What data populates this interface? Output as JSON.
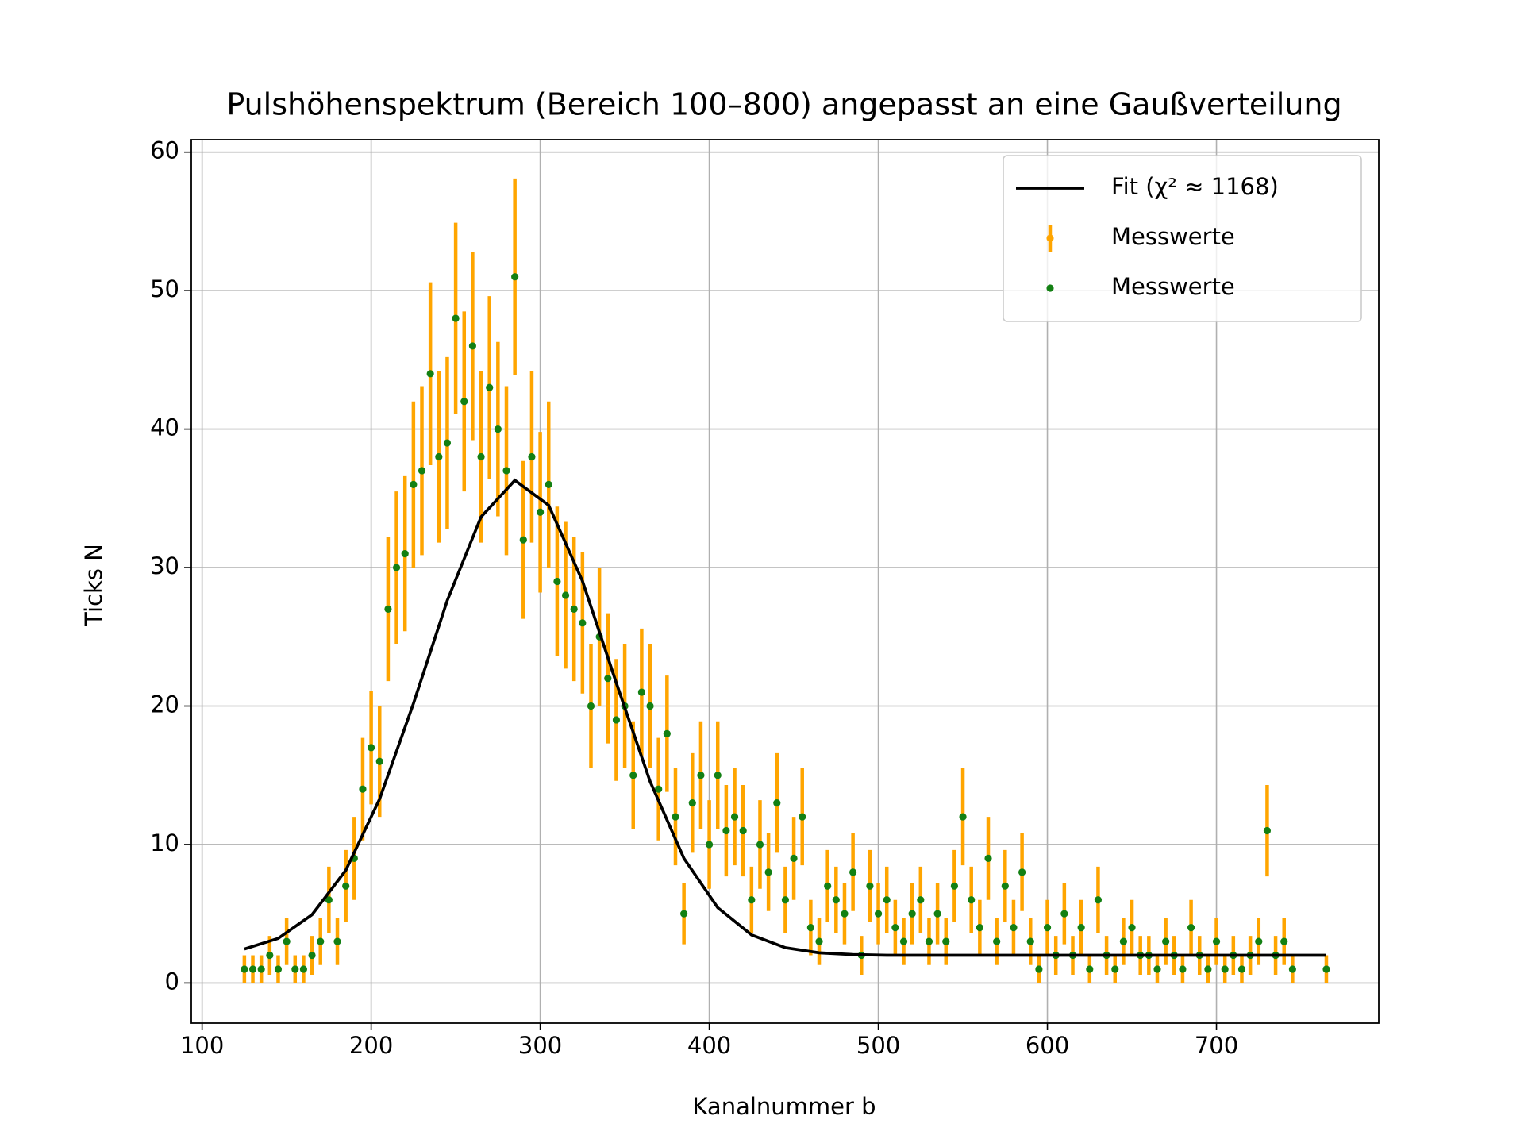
{
  "chart_data": {
    "type": "errorbar",
    "title": "Pulshöhenspektrum (Bereich 100–800) angepasst an eine Gaußverteilung",
    "xlabel": "Kanalnummer b",
    "ylabel": "Ticks N",
    "xlim": [
      93.6,
      796
    ],
    "ylim": [
      -2.9,
      60.9
    ],
    "xticks": [
      100,
      200,
      300,
      400,
      500,
      600,
      700
    ],
    "yticks": [
      0,
      10,
      20,
      30,
      40,
      50,
      60
    ],
    "grid": true,
    "legend": "upper right",
    "series": [
      {
        "name": "Fit (χ² ≈ 1168)",
        "type": "line",
        "color": "#000000",
        "x": [
          125,
          145,
          165,
          185,
          205,
          225,
          245,
          265,
          285,
          305,
          325,
          345,
          365,
          385,
          405,
          425,
          445,
          465,
          485,
          505,
          545,
          605,
          665,
          725,
          765
        ],
        "values": [
          2.45,
          3.22,
          4.93,
          8.14,
          13.29,
          20.18,
          27.62,
          33.66,
          36.3,
          34.5,
          29.02,
          21.67,
          14.55,
          9.0,
          5.44,
          3.47,
          2.55,
          2.18,
          2.05,
          2.0,
          2.0,
          2.0,
          2.0,
          2.0,
          2.0
        ]
      },
      {
        "name": "Messwerte",
        "type": "errorbar",
        "color": "#ffa500",
        "x": [
          125,
          130,
          135,
          140,
          145,
          150,
          155,
          160,
          165,
          170,
          175,
          180,
          185,
          190,
          195,
          200,
          205,
          210,
          215,
          220,
          225,
          230,
          235,
          240,
          245,
          250,
          255,
          260,
          265,
          270,
          275,
          280,
          285,
          290,
          295,
          300,
          305,
          310,
          315,
          320,
          325,
          330,
          335,
          340,
          345,
          350,
          355,
          360,
          365,
          370,
          375,
          380,
          385,
          390,
          395,
          400,
          405,
          410,
          415,
          420,
          425,
          430,
          435,
          440,
          445,
          450,
          455,
          460,
          465,
          470,
          475,
          480,
          485,
          490,
          495,
          500,
          505,
          510,
          515,
          520,
          525,
          530,
          535,
          540,
          545,
          550,
          555,
          560,
          565,
          570,
          575,
          580,
          585,
          590,
          595,
          600,
          605,
          610,
          615,
          620,
          625,
          630,
          635,
          640,
          645,
          650,
          655,
          660,
          665,
          670,
          675,
          680,
          685,
          690,
          695,
          700,
          705,
          710,
          715,
          720,
          725,
          730,
          735,
          740,
          745,
          765
        ],
        "values": [
          1,
          1,
          1,
          2,
          1,
          3,
          1,
          1,
          2,
          3,
          6,
          3,
          7,
          9,
          14,
          17,
          16,
          27,
          30,
          31,
          36,
          37,
          44,
          38,
          39,
          48,
          42,
          46,
          38,
          43,
          40,
          37,
          51,
          32,
          38,
          34,
          36,
          29,
          28,
          27,
          26,
          20,
          25,
          22,
          19,
          20,
          15,
          21,
          20,
          14,
          18,
          12,
          5,
          13,
          15,
          10,
          15,
          11,
          12,
          11,
          6,
          10,
          8,
          13,
          6,
          9,
          12,
          4,
          3,
          7,
          6,
          5,
          8,
          2,
          7,
          5,
          6,
          4,
          3,
          5,
          6,
          3,
          5,
          3,
          7,
          12,
          6,
          4,
          9,
          3,
          7,
          4,
          8,
          3,
          1,
          4,
          2,
          5,
          2,
          4,
          1,
          6,
          2,
          1,
          3,
          4,
          2,
          2,
          1,
          3,
          2,
          1,
          4,
          2,
          1,
          3,
          1,
          2,
          1,
          2,
          3,
          11,
          2,
          3,
          1,
          1
        ],
        "errors": [
          1,
          1,
          1,
          1.4,
          1,
          1.7,
          1,
          1,
          1.4,
          1.7,
          2.4,
          1.7,
          2.6,
          3,
          3.7,
          4.1,
          4,
          5.2,
          5.5,
          5.6,
          6,
          6.1,
          6.6,
          6.2,
          6.2,
          6.9,
          6.5,
          6.8,
          6.2,
          6.6,
          6.3,
          6.1,
          7.1,
          5.7,
          6.2,
          5.8,
          6,
          5.4,
          5.3,
          5.2,
          5.1,
          4.5,
          5,
          4.7,
          4.4,
          4.5,
          3.9,
          4.6,
          4.5,
          3.7,
          4.2,
          3.5,
          2.2,
          3.6,
          3.9,
          3.2,
          3.9,
          3.3,
          3.5,
          3.3,
          2.4,
          3.2,
          2.8,
          3.6,
          2.4,
          3,
          3.5,
          2,
          1.7,
          2.6,
          2.4,
          2.2,
          2.8,
          1.4,
          2.6,
          2.2,
          2.4,
          2,
          1.7,
          2.2,
          2.4,
          1.7,
          2.2,
          1.7,
          2.6,
          3.5,
          2.4,
          2,
          3,
          1.7,
          2.6,
          2,
          2.8,
          1.7,
          1,
          2,
          1.4,
          2.2,
          1.4,
          2,
          1,
          2.4,
          1.4,
          1,
          1.7,
          2,
          1.4,
          1.4,
          1,
          1.7,
          1.4,
          1,
          2,
          1.4,
          1,
          1.7,
          1,
          1.4,
          1,
          1.4,
          1.7,
          3.3,
          1.4,
          1.7,
          1,
          1
        ]
      },
      {
        "name": "Messwerte",
        "type": "scatter",
        "color": "#138013",
        "x": [
          125,
          130,
          135,
          140,
          145,
          150,
          155,
          160,
          165,
          170,
          175,
          180,
          185,
          190,
          195,
          200,
          205,
          210,
          215,
          220,
          225,
          230,
          235,
          240,
          245,
          250,
          255,
          260,
          265,
          270,
          275,
          280,
          285,
          290,
          295,
          300,
          305,
          310,
          315,
          320,
          325,
          330,
          335,
          340,
          345,
          350,
          355,
          360,
          365,
          370,
          375,
          380,
          385,
          390,
          395,
          400,
          405,
          410,
          415,
          420,
          425,
          430,
          435,
          440,
          445,
          450,
          455,
          460,
          465,
          470,
          475,
          480,
          485,
          490,
          495,
          500,
          505,
          510,
          515,
          520,
          525,
          530,
          535,
          540,
          545,
          550,
          555,
          560,
          565,
          570,
          575,
          580,
          585,
          590,
          595,
          600,
          605,
          610,
          615,
          620,
          625,
          630,
          635,
          640,
          645,
          650,
          655,
          660,
          665,
          670,
          675,
          680,
          685,
          690,
          695,
          700,
          705,
          710,
          715,
          720,
          725,
          730,
          735,
          740,
          745,
          765
        ],
        "values": [
          1,
          1,
          1,
          2,
          1,
          3,
          1,
          1,
          2,
          3,
          6,
          3,
          7,
          9,
          14,
          17,
          16,
          27,
          30,
          31,
          36,
          37,
          44,
          38,
          39,
          48,
          42,
          46,
          38,
          43,
          40,
          37,
          51,
          32,
          38,
          34,
          36,
          29,
          28,
          27,
          26,
          20,
          25,
          22,
          19,
          20,
          15,
          21,
          20,
          14,
          18,
          12,
          5,
          13,
          15,
          10,
          15,
          11,
          12,
          11,
          6,
          10,
          8,
          13,
          6,
          9,
          12,
          4,
          3,
          7,
          6,
          5,
          8,
          2,
          7,
          5,
          6,
          4,
          3,
          5,
          6,
          3,
          5,
          3,
          7,
          12,
          6,
          4,
          9,
          3,
          7,
          4,
          8,
          3,
          1,
          4,
          2,
          5,
          2,
          4,
          1,
          6,
          2,
          1,
          3,
          4,
          2,
          2,
          1,
          3,
          2,
          1,
          4,
          2,
          1,
          3,
          1,
          2,
          1,
          2,
          3,
          11,
          2,
          3,
          1,
          1
        ]
      }
    ]
  }
}
